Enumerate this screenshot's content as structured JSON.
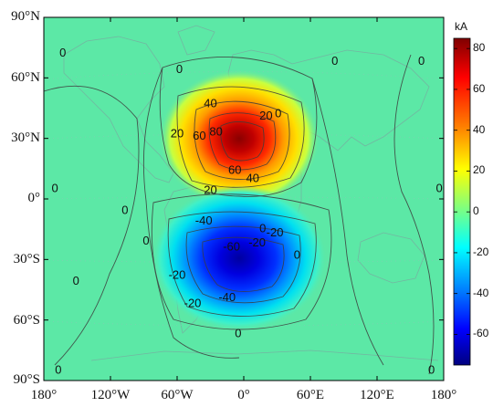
{
  "map": {
    "lat_labels": [
      "90°N",
      "60°N",
      "30°N",
      "0°",
      "30°S",
      "60°S",
      "90°S"
    ],
    "lon_labels": [
      "180°",
      "120°W",
      "60°W",
      "0°",
      "60°E",
      "120°E",
      "180°"
    ],
    "colorbar": {
      "unit": "kA",
      "ticks": [
        "80",
        "60",
        "40",
        "20",
        "0",
        "-20",
        "-40",
        "-60"
      ],
      "range": [
        -75,
        85
      ],
      "colors": [
        "#00007f",
        "#0000ff",
        "#007fff",
        "#00ffff",
        "#7fff7f",
        "#ffff00",
        "#ff7f00",
        "#ff0000",
        "#7f0000"
      ]
    },
    "background_color": "#5ce8a6",
    "contour_labels": [
      {
        "text": "0",
        "lon": -163,
        "lat": 72
      },
      {
        "text": "0",
        "lon": -58,
        "lat": 64
      },
      {
        "text": "0",
        "lon": 31,
        "lat": 42
      },
      {
        "text": "0",
        "lon": 82,
        "lat": 68
      },
      {
        "text": "0",
        "lon": 160,
        "lat": 68
      },
      {
        "text": "0",
        "lon": -170,
        "lat": 5
      },
      {
        "text": "0",
        "lon": -107,
        "lat": -6
      },
      {
        "text": "0",
        "lon": -88,
        "lat": -21
      },
      {
        "text": "0",
        "lon": 17,
        "lat": -15
      },
      {
        "text": "0",
        "lon": 48,
        "lat": -28
      },
      {
        "text": "0",
        "lon": 176,
        "lat": 5
      },
      {
        "text": "0",
        "lon": -151,
        "lat": -41
      },
      {
        "text": "0",
        "lon": -5,
        "lat": -67
      },
      {
        "text": "0",
        "lon": -167,
        "lat": -85
      },
      {
        "text": "0",
        "lon": 169,
        "lat": -85
      },
      {
        "text": "40",
        "lon": -30,
        "lat": 47
      },
      {
        "text": "20",
        "lon": -60,
        "lat": 32
      },
      {
        "text": "20",
        "lon": 20,
        "lat": 41
      },
      {
        "text": "60",
        "lon": -40,
        "lat": 31
      },
      {
        "text": "80",
        "lon": -25,
        "lat": 33
      },
      {
        "text": "60",
        "lon": -8,
        "lat": 14
      },
      {
        "text": "40",
        "lon": 8,
        "lat": 10
      },
      {
        "text": "20",
        "lon": -30,
        "lat": 4
      },
      {
        "text": "-40",
        "lon": -36,
        "lat": -11
      },
      {
        "text": "-20",
        "lon": 12,
        "lat": -22
      },
      {
        "text": "-20",
        "lon": 28,
        "lat": -17
      },
      {
        "text": "-60",
        "lon": -11,
        "lat": -24
      },
      {
        "text": "-20",
        "lon": -60,
        "lat": -38
      },
      {
        "text": "-20",
        "lon": -46,
        "lat": -52
      },
      {
        "text": "-40",
        "lon": -15,
        "lat": -49
      }
    ]
  }
}
